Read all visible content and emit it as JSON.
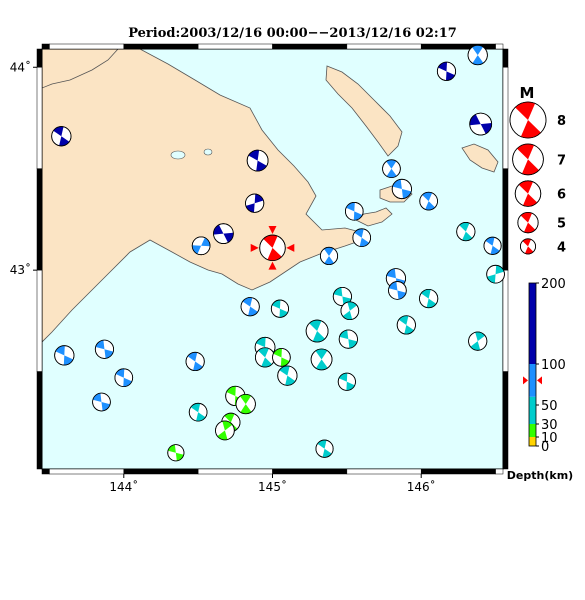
{
  "title": "Period:2003/12/16 00:00−−2013/12/16 02:17",
  "map": {
    "lon_range": [
      143.45,
      146.55
    ],
    "lat_range": [
      42.02,
      44.09
    ],
    "lat_ticks": [
      {
        "v": 44,
        "label": "44˚"
      },
      {
        "v": 43,
        "label": "43˚"
      }
    ],
    "lon_ticks": [
      {
        "v": 144,
        "label": "144˚"
      },
      {
        "v": 145,
        "label": "145˚"
      },
      {
        "v": 146,
        "label": "146˚"
      }
    ],
    "colors": {
      "sea": "#e0ffff",
      "land": "#fbe4c4",
      "coast": "#555555",
      "main_event": "#ff0000"
    },
    "main_event": {
      "lon": 145.0,
      "lat": 43.11,
      "mag": 6.0
    }
  },
  "legend": {
    "title": "M",
    "entries": [
      {
        "label": "8",
        "mag": 8
      },
      {
        "label": "7",
        "mag": 7
      },
      {
        "label": "6",
        "mag": 6
      },
      {
        "label": "5",
        "mag": 5
      },
      {
        "label": "4",
        "mag": 4
      }
    ]
  },
  "depth_scale": {
    "label": "Depth(km)",
    "max": 200,
    "ticks": [
      {
        "v": 200,
        "label": "200"
      },
      {
        "v": 100,
        "label": "100"
      },
      {
        "v": 50,
        "label": "50"
      },
      {
        "v": 30,
        "label": "30"
      },
      {
        "v": 10,
        "label": "10"
      },
      {
        "v": 0,
        "label": "0"
      }
    ],
    "bands": [
      {
        "from": 0,
        "to": 10,
        "color": "#ffd400"
      },
      {
        "from": 10,
        "to": 30,
        "color": "#33ff00"
      },
      {
        "from": 30,
        "to": 60,
        "color": "#00cccc"
      },
      {
        "from": 60,
        "to": 100,
        "color": "#1e90ff"
      },
      {
        "from": 100,
        "to": 200,
        "color": "#0000aa"
      }
    ],
    "main_event_depth": 80
  },
  "events": [
    {
      "lon": 143.58,
      "lat": 43.66,
      "mag": 4.8,
      "depth": 110,
      "rot": 20
    },
    {
      "lon": 146.17,
      "lat": 43.98,
      "mag": 4.6,
      "depth": 120,
      "rot": 10
    },
    {
      "lon": 146.38,
      "lat": 44.06,
      "mag": 4.8,
      "depth": 80,
      "rot": 40
    },
    {
      "lon": 146.4,
      "lat": 43.72,
      "mag": 5.3,
      "depth": 130,
      "rot": -20
    },
    {
      "lon": 144.9,
      "lat": 43.54,
      "mag": 5.1,
      "depth": 140,
      "rot": 15
    },
    {
      "lon": 145.8,
      "lat": 43.5,
      "mag": 4.5,
      "depth": 70,
      "rot": 40
    },
    {
      "lon": 145.87,
      "lat": 43.4,
      "mag": 4.8,
      "depth": 65,
      "rot": 0
    },
    {
      "lon": 146.05,
      "lat": 43.34,
      "mag": 4.5,
      "depth": 65,
      "rot": 30
    },
    {
      "lon": 144.88,
      "lat": 43.33,
      "mag": 4.6,
      "depth": 140,
      "rot": 80
    },
    {
      "lon": 145.55,
      "lat": 43.29,
      "mag": 4.5,
      "depth": 60,
      "rot": 10
    },
    {
      "lon": 144.67,
      "lat": 43.18,
      "mag": 4.9,
      "depth": 150,
      "rot": -20
    },
    {
      "lon": 144.52,
      "lat": 43.12,
      "mag": 4.5,
      "depth": 90,
      "rot": 100
    },
    {
      "lon": 145.6,
      "lat": 43.16,
      "mag": 4.5,
      "depth": 60,
      "rot": 20
    },
    {
      "lon": 146.3,
      "lat": 43.19,
      "mag": 4.6,
      "depth": 50,
      "rot": 30
    },
    {
      "lon": 146.48,
      "lat": 43.12,
      "mag": 4.4,
      "depth": 60,
      "rot": 20
    },
    {
      "lon": 145.38,
      "lat": 43.07,
      "mag": 4.4,
      "depth": 70,
      "rot": 40
    },
    {
      "lon": 146.5,
      "lat": 42.98,
      "mag": 4.5,
      "depth": 50,
      "rot": 80
    },
    {
      "lon": 145.83,
      "lat": 42.96,
      "mag": 4.8,
      "depth": 80,
      "rot": 0
    },
    {
      "lon": 145.84,
      "lat": 42.9,
      "mag": 4.5,
      "depth": 70,
      "rot": 0
    },
    {
      "lon": 146.05,
      "lat": 42.86,
      "mag": 4.6,
      "depth": 50,
      "rot": 20
    },
    {
      "lon": 145.47,
      "lat": 42.87,
      "mag": 4.6,
      "depth": 50,
      "rot": 0
    },
    {
      "lon": 145.52,
      "lat": 42.8,
      "mag": 4.5,
      "depth": 50,
      "rot": 60
    },
    {
      "lon": 144.85,
      "lat": 42.82,
      "mag": 4.6,
      "depth": 90,
      "rot": 20
    },
    {
      "lon": 145.05,
      "lat": 42.81,
      "mag": 4.4,
      "depth": 50,
      "rot": 10
    },
    {
      "lon": 145.9,
      "lat": 42.73,
      "mag": 4.6,
      "depth": 50,
      "rot": 20
    },
    {
      "lon": 145.3,
      "lat": 42.7,
      "mag": 5.3,
      "depth": 50,
      "rot": 30
    },
    {
      "lon": 145.51,
      "lat": 42.66,
      "mag": 4.6,
      "depth": 50,
      "rot": 0
    },
    {
      "lon": 146.38,
      "lat": 42.65,
      "mag": 4.6,
      "depth": 50,
      "rot": 60
    },
    {
      "lon": 144.95,
      "lat": 42.62,
      "mag": 4.9,
      "depth": 50,
      "rot": 10
    },
    {
      "lon": 144.95,
      "lat": 42.57,
      "mag": 4.8,
      "depth": 50,
      "rot": 30
    },
    {
      "lon": 145.06,
      "lat": 42.57,
      "mag": 4.5,
      "depth": 20,
      "rot": 10
    },
    {
      "lon": 145.33,
      "lat": 42.56,
      "mag": 5.1,
      "depth": 50,
      "rot": 40
    },
    {
      "lon": 145.1,
      "lat": 42.48,
      "mag": 4.8,
      "depth": 30,
      "rot": 20
    },
    {
      "lon": 143.6,
      "lat": 42.58,
      "mag": 4.8,
      "depth": 90,
      "rot": 10
    },
    {
      "lon": 143.87,
      "lat": 42.61,
      "mag": 4.6,
      "depth": 90,
      "rot": 0
    },
    {
      "lon": 144.48,
      "lat": 42.55,
      "mag": 4.6,
      "depth": 90,
      "rot": 20
    },
    {
      "lon": 144.0,
      "lat": 42.47,
      "mag": 4.5,
      "depth": 80,
      "rot": 10
    },
    {
      "lon": 145.5,
      "lat": 42.45,
      "mag": 4.4,
      "depth": 50,
      "rot": 10
    },
    {
      "lon": 143.85,
      "lat": 42.35,
      "mag": 4.5,
      "depth": 90,
      "rot": 0
    },
    {
      "lon": 144.75,
      "lat": 42.38,
      "mag": 4.8,
      "depth": 20,
      "rot": 10
    },
    {
      "lon": 144.82,
      "lat": 42.34,
      "mag": 4.8,
      "depth": 20,
      "rot": 40
    },
    {
      "lon": 144.5,
      "lat": 42.3,
      "mag": 4.5,
      "depth": 50,
      "rot": 20
    },
    {
      "lon": 144.72,
      "lat": 42.25,
      "mag": 4.6,
      "depth": 20,
      "rot": 30
    },
    {
      "lon": 144.68,
      "lat": 42.21,
      "mag": 4.7,
      "depth": 20,
      "rot": 60
    },
    {
      "lon": 144.35,
      "lat": 42.1,
      "mag": 4.2,
      "depth": 20,
      "rot": 0
    },
    {
      "lon": 145.35,
      "lat": 42.12,
      "mag": 4.4,
      "depth": 50,
      "rot": 20
    }
  ]
}
